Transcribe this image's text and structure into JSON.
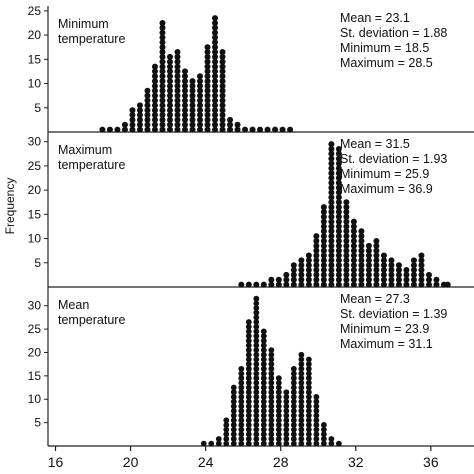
{
  "chart_data": {
    "type": "dot-histogram",
    "ylabel": "Frequency",
    "x_ticks": [
      16,
      20,
      24,
      28,
      32,
      36
    ],
    "xlim": [
      15.6,
      38.3
    ],
    "bin_width": 0.4,
    "panels": [
      {
        "title_lines": [
          "Minimum",
          "temperature"
        ],
        "stats": [
          "Mean = 23.1",
          "St. deviation = 1.88",
          "Minimum = 18.5",
          "Maximum = 28.5"
        ],
        "y_ticks": [
          5,
          10,
          15,
          20,
          25
        ],
        "ylim": [
          0,
          26
        ],
        "bins": [
          [
            18.5,
            1
          ],
          [
            18.9,
            1
          ],
          [
            19.3,
            1
          ],
          [
            19.7,
            2
          ],
          [
            20.1,
            5
          ],
          [
            20.5,
            6
          ],
          [
            20.9,
            9
          ],
          [
            21.3,
            14
          ],
          [
            21.7,
            23
          ],
          [
            22.1,
            16
          ],
          [
            22.5,
            17
          ],
          [
            22.9,
            13
          ],
          [
            23.3,
            11
          ],
          [
            23.7,
            12
          ],
          [
            24.1,
            18
          ],
          [
            24.5,
            24
          ],
          [
            24.9,
            17
          ],
          [
            25.3,
            3
          ],
          [
            25.7,
            2
          ],
          [
            26.1,
            1
          ],
          [
            26.5,
            1
          ],
          [
            26.9,
            1
          ],
          [
            27.3,
            1
          ],
          [
            27.7,
            1
          ],
          [
            28.1,
            1
          ],
          [
            28.5,
            1
          ]
        ]
      },
      {
        "title_lines": [
          "Maximum",
          "temperature"
        ],
        "stats": [
          "Mean = 31.5",
          "St. deviation = 1.93",
          "Minimum = 25.9",
          "Maximum = 36.9"
        ],
        "y_ticks": [
          5,
          10,
          15,
          20,
          25,
          30
        ],
        "ylim": [
          0,
          32
        ],
        "bins": [
          [
            25.9,
            1
          ],
          [
            26.3,
            1
          ],
          [
            26.7,
            1
          ],
          [
            27.1,
            1
          ],
          [
            27.5,
            2
          ],
          [
            27.9,
            2
          ],
          [
            28.3,
            3
          ],
          [
            28.7,
            5
          ],
          [
            29.1,
            6
          ],
          [
            29.5,
            7
          ],
          [
            29.9,
            11
          ],
          [
            30.3,
            17
          ],
          [
            30.7,
            30
          ],
          [
            31.1,
            29
          ],
          [
            31.5,
            18
          ],
          [
            31.9,
            14
          ],
          [
            32.3,
            12
          ],
          [
            32.7,
            9
          ],
          [
            33.1,
            10
          ],
          [
            33.5,
            7
          ],
          [
            33.9,
            6
          ],
          [
            34.3,
            5
          ],
          [
            34.7,
            4
          ],
          [
            35.1,
            6
          ],
          [
            35.5,
            7
          ],
          [
            35.9,
            3
          ],
          [
            36.3,
            2
          ],
          [
            36.7,
            1
          ],
          [
            36.9,
            1
          ]
        ]
      },
      {
        "title_lines": [
          "Mean",
          "temperature"
        ],
        "stats": [
          "Mean = 27.3",
          "St. deviation = 1.39",
          "Minimum = 23.9",
          "Maximum = 31.1"
        ],
        "y_ticks": [
          5,
          10,
          15,
          20,
          25,
          30
        ],
        "ylim": [
          0,
          34
        ],
        "bins": [
          [
            23.9,
            1
          ],
          [
            24.3,
            1
          ],
          [
            24.7,
            2
          ],
          [
            25.1,
            6
          ],
          [
            25.5,
            13
          ],
          [
            25.9,
            17
          ],
          [
            26.3,
            27
          ],
          [
            26.7,
            32
          ],
          [
            27.1,
            25
          ],
          [
            27.5,
            21
          ],
          [
            27.9,
            15
          ],
          [
            28.3,
            12
          ],
          [
            28.7,
            17
          ],
          [
            29.1,
            20
          ],
          [
            29.5,
            19
          ],
          [
            29.9,
            11
          ],
          [
            30.3,
            5
          ],
          [
            30.7,
            2
          ],
          [
            31.1,
            1
          ]
        ]
      }
    ]
  }
}
